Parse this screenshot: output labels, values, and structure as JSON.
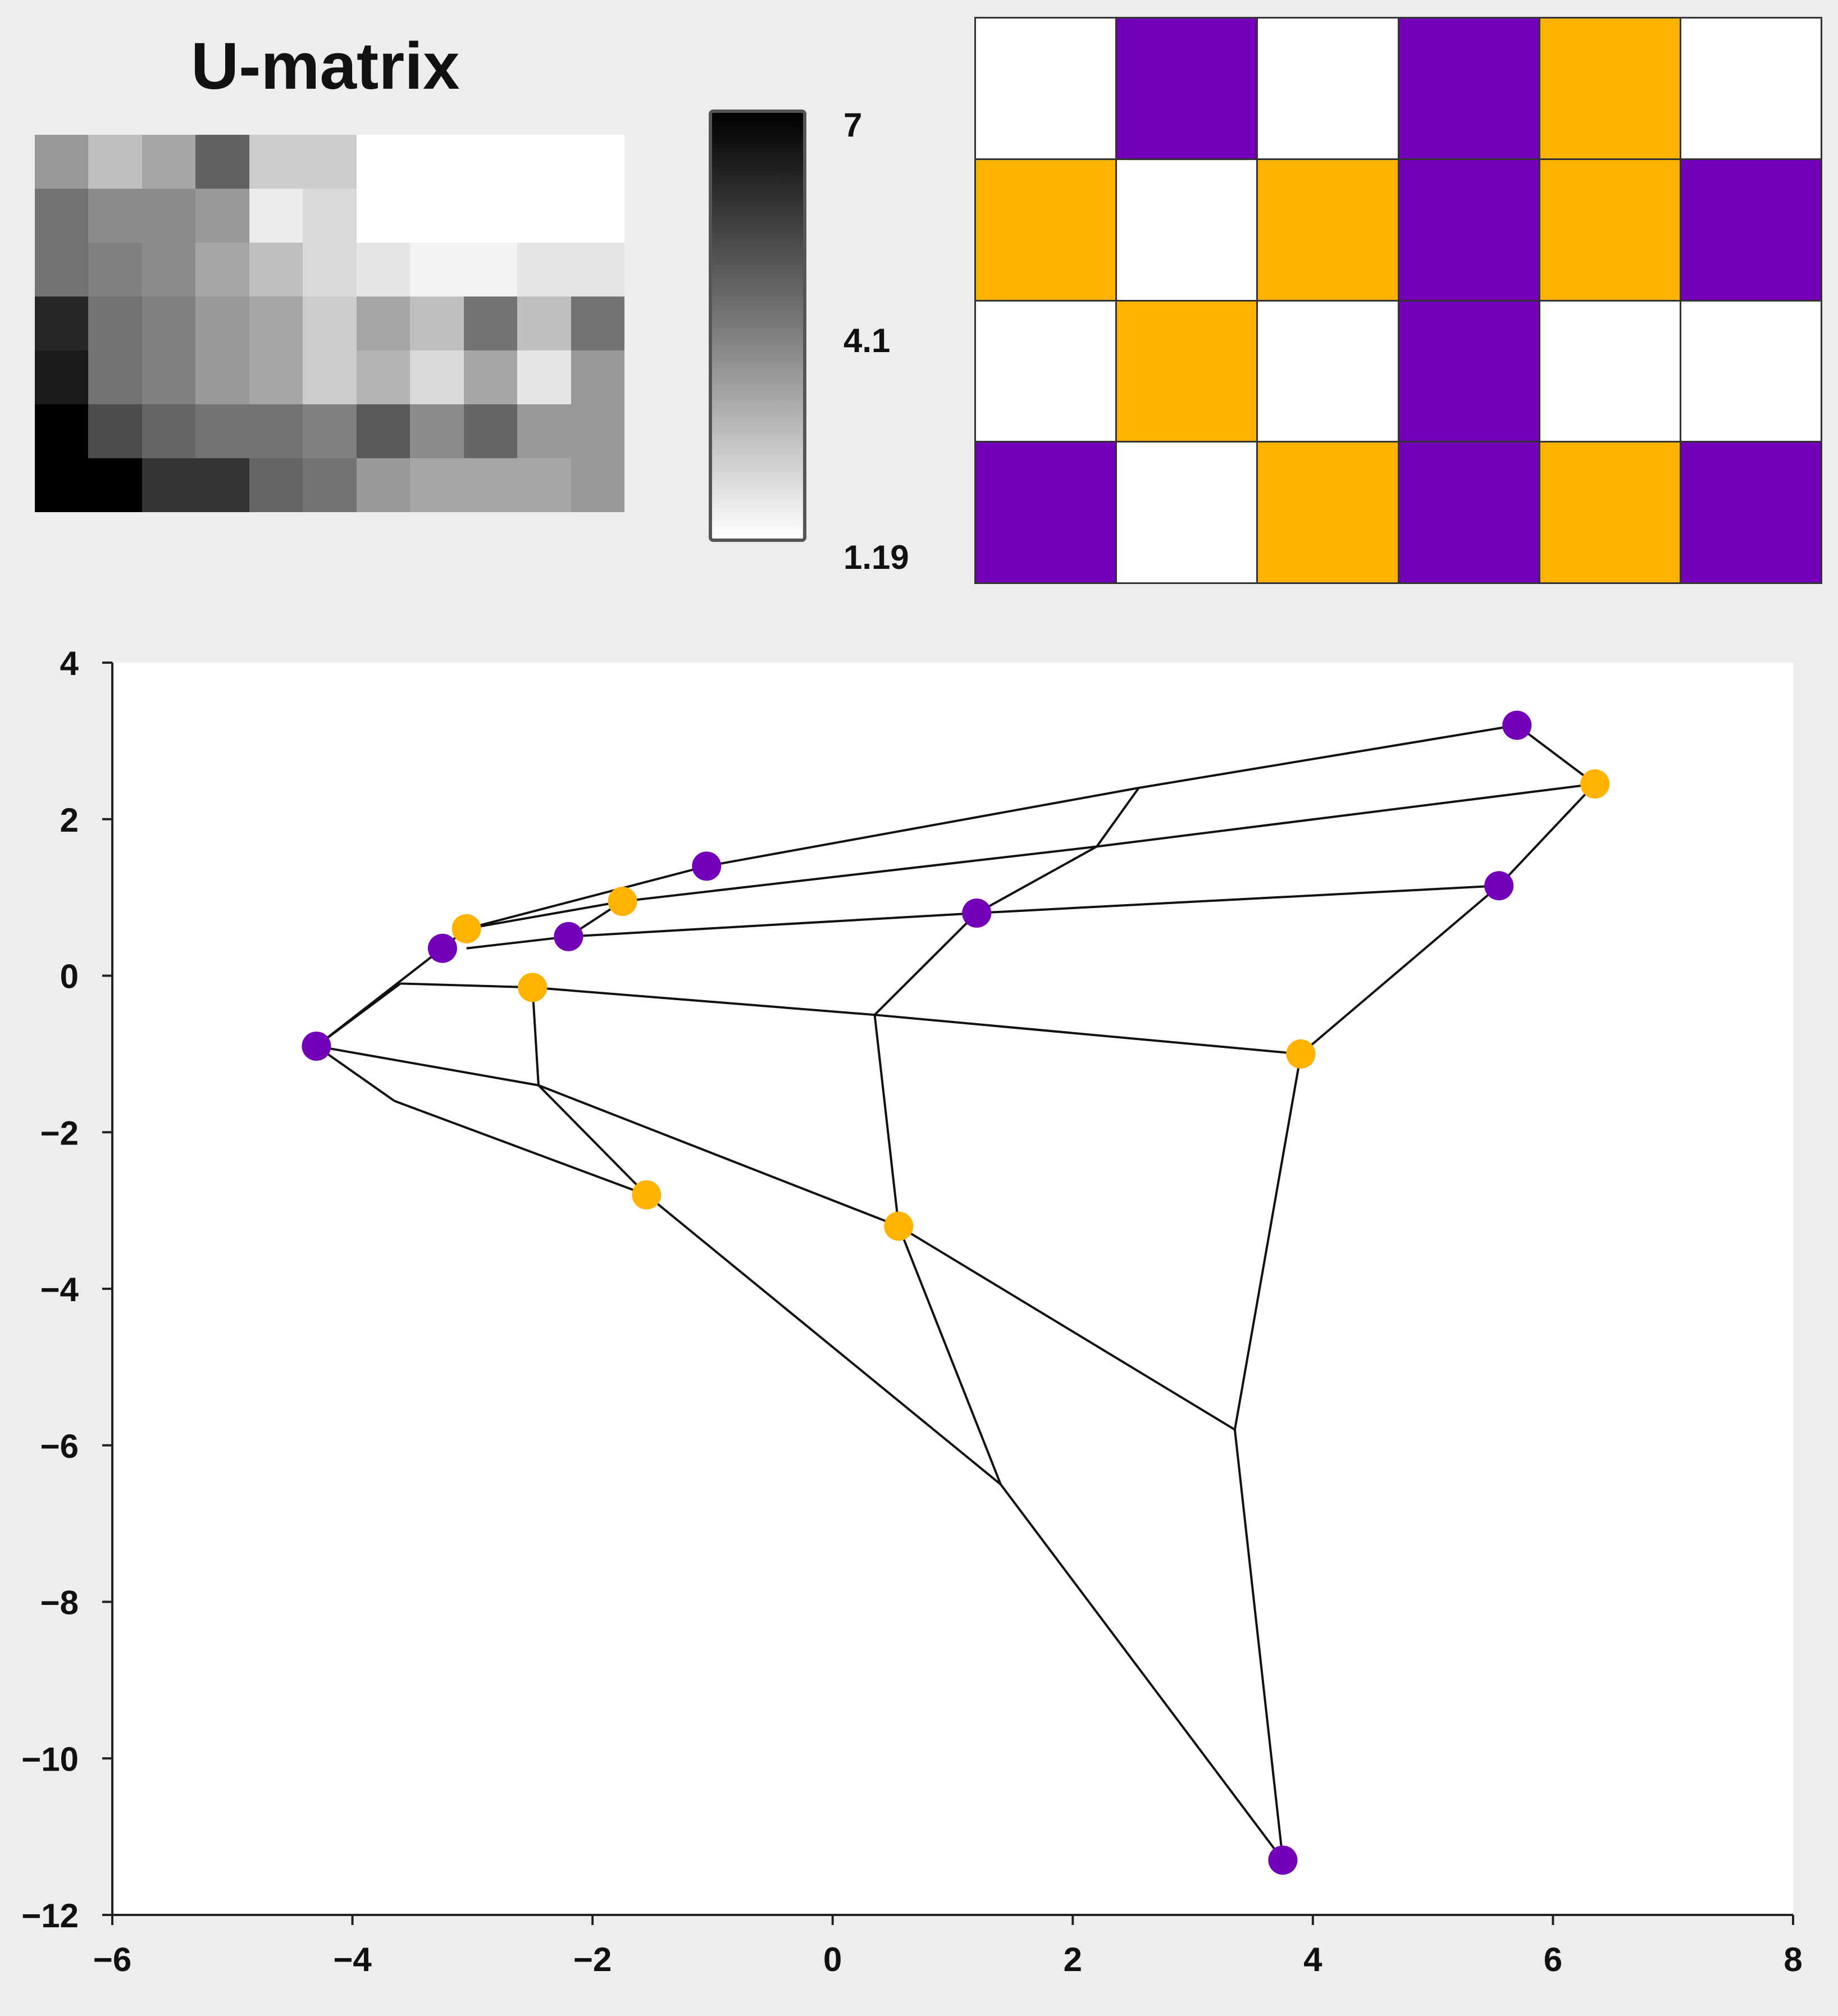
{
  "umatrix": {
    "title": "U-matrix",
    "colorbar": {
      "max": "7",
      "mid": "4.1",
      "min": "1.19"
    },
    "cells": [
      [
        0.4,
        0.25,
        0.35,
        0.62,
        0.2,
        0.2,
        0.0,
        0.0,
        0.0,
        0.0,
        0.0
      ],
      [
        0.55,
        0.45,
        0.45,
        0.4,
        0.08,
        0.15,
        0.0,
        0.0,
        0.0,
        0.0,
        0.0
      ],
      [
        0.55,
        0.5,
        0.45,
        0.35,
        0.25,
        0.15,
        0.1,
        0.05,
        0.05,
        0.1,
        0.1
      ],
      [
        0.85,
        0.55,
        0.5,
        0.4,
        0.35,
        0.2,
        0.35,
        0.25,
        0.55,
        0.25,
        0.55
      ],
      [
        0.9,
        0.55,
        0.5,
        0.4,
        0.35,
        0.2,
        0.3,
        0.15,
        0.35,
        0.1,
        0.4
      ],
      [
        1.0,
        0.7,
        0.6,
        0.55,
        0.55,
        0.5,
        0.65,
        0.45,
        0.6,
        0.4,
        0.4
      ],
      [
        1.0,
        1.0,
        0.8,
        0.8,
        0.6,
        0.55,
        0.4,
        0.35,
        0.35,
        0.35,
        0.4
      ]
    ]
  },
  "hitmap": {
    "cells": [
      [
        "empty",
        "purple",
        "empty",
        "purple",
        "orange",
        "empty"
      ],
      [
        "orange",
        "empty",
        "orange",
        "purple",
        "orange",
        "purple"
      ],
      [
        "empty",
        "orange",
        "empty",
        "purple",
        "empty",
        "empty"
      ],
      [
        "purple",
        "empty",
        "orange",
        "purple",
        "orange",
        "purple"
      ]
    ]
  },
  "colors": {
    "purple": "#7300b8",
    "orange": "#ffb300",
    "empty": "#ffffff"
  },
  "chart_data": {
    "type": "scatter",
    "xlim": [
      -6,
      8
    ],
    "ylim": [
      -12,
      4
    ],
    "x_ticks": [
      "-6",
      "-4",
      "-2",
      "0",
      "2",
      "4",
      "6",
      "8"
    ],
    "y_ticks": [
      "4",
      "2",
      "0",
      "-2",
      "-4",
      "-6",
      "-8",
      "-10",
      "-12"
    ],
    "grid": false,
    "points": [
      {
        "x": 5.7,
        "y": 3.2,
        "color": "purple"
      },
      {
        "x": 6.35,
        "y": 2.45,
        "color": "orange"
      },
      {
        "x": -1.05,
        "y": 1.4,
        "color": "purple"
      },
      {
        "x": -1.75,
        "y": 0.95,
        "color": "orange"
      },
      {
        "x": 5.55,
        "y": 1.15,
        "color": "purple"
      },
      {
        "x": 1.2,
        "y": 0.8,
        "color": "purple"
      },
      {
        "x": -3.05,
        "y": 0.6,
        "color": "orange"
      },
      {
        "x": -2.2,
        "y": 0.5,
        "color": "purple"
      },
      {
        "x": -3.25,
        "y": 0.35,
        "color": "purple"
      },
      {
        "x": -2.5,
        "y": -0.15,
        "color": "orange"
      },
      {
        "x": -4.3,
        "y": -0.9,
        "color": "purple"
      },
      {
        "x": 3.9,
        "y": -1.0,
        "color": "orange"
      },
      {
        "x": -1.55,
        "y": -2.8,
        "color": "orange"
      },
      {
        "x": 0.55,
        "y": -3.2,
        "color": "orange"
      },
      {
        "x": 3.75,
        "y": -11.3,
        "color": "purple"
      }
    ],
    "segments": [
      [
        5.7,
        3.2,
        6.35,
        2.45
      ],
      [
        6.35,
        2.45,
        5.55,
        1.15
      ],
      [
        5.55,
        1.15,
        3.9,
        -1.0
      ],
      [
        3.9,
        -1.0,
        3.35,
        -5.8
      ],
      [
        3.35,
        -5.8,
        3.75,
        -11.3
      ],
      [
        5.7,
        3.2,
        2.55,
        2.4
      ],
      [
        2.55,
        2.4,
        -1.05,
        1.4
      ],
      [
        2.55,
        2.4,
        2.2,
        1.65
      ],
      [
        2.2,
        1.65,
        1.2,
        0.8
      ],
      [
        6.35,
        2.45,
        2.2,
        1.65
      ],
      [
        2.2,
        1.65,
        -1.75,
        0.95
      ],
      [
        5.55,
        1.15,
        1.2,
        0.8
      ],
      [
        1.2,
        0.8,
        -2.2,
        0.5
      ],
      [
        1.2,
        0.8,
        0.35,
        -0.5
      ],
      [
        -1.05,
        1.4,
        -3.05,
        0.6
      ],
      [
        -1.75,
        0.95,
        -3.05,
        0.6
      ],
      [
        -1.75,
        0.95,
        -2.2,
        0.5
      ],
      [
        -2.2,
        0.5,
        -3.05,
        0.35
      ],
      [
        -3.05,
        0.6,
        -3.25,
        0.35
      ],
      [
        -3.25,
        0.35,
        -4.3,
        -0.9
      ],
      [
        -4.3,
        -0.9,
        -3.6,
        -0.1
      ],
      [
        -3.6,
        -0.1,
        -2.5,
        -0.15
      ],
      [
        -2.5,
        -0.15,
        0.35,
        -0.5
      ],
      [
        0.35,
        -0.5,
        3.9,
        -1.0
      ],
      [
        0.35,
        -0.5,
        0.55,
        -3.2
      ],
      [
        -2.5,
        -0.15,
        -2.45,
        -1.4
      ],
      [
        -4.3,
        -0.9,
        -2.45,
        -1.4
      ],
      [
        -2.45,
        -1.4,
        0.55,
        -3.2
      ],
      [
        -2.45,
        -1.4,
        -1.55,
        -2.8
      ],
      [
        -4.3,
        -0.9,
        -3.65,
        -1.6
      ],
      [
        -3.65,
        -1.6,
        -1.55,
        -2.8
      ],
      [
        -1.55,
        -2.8,
        1.4,
        -6.5
      ],
      [
        0.55,
        -3.2,
        1.4,
        -6.5
      ],
      [
        0.55,
        -3.2,
        3.35,
        -5.8
      ],
      [
        1.4,
        -6.5,
        3.75,
        -11.3
      ]
    ]
  }
}
